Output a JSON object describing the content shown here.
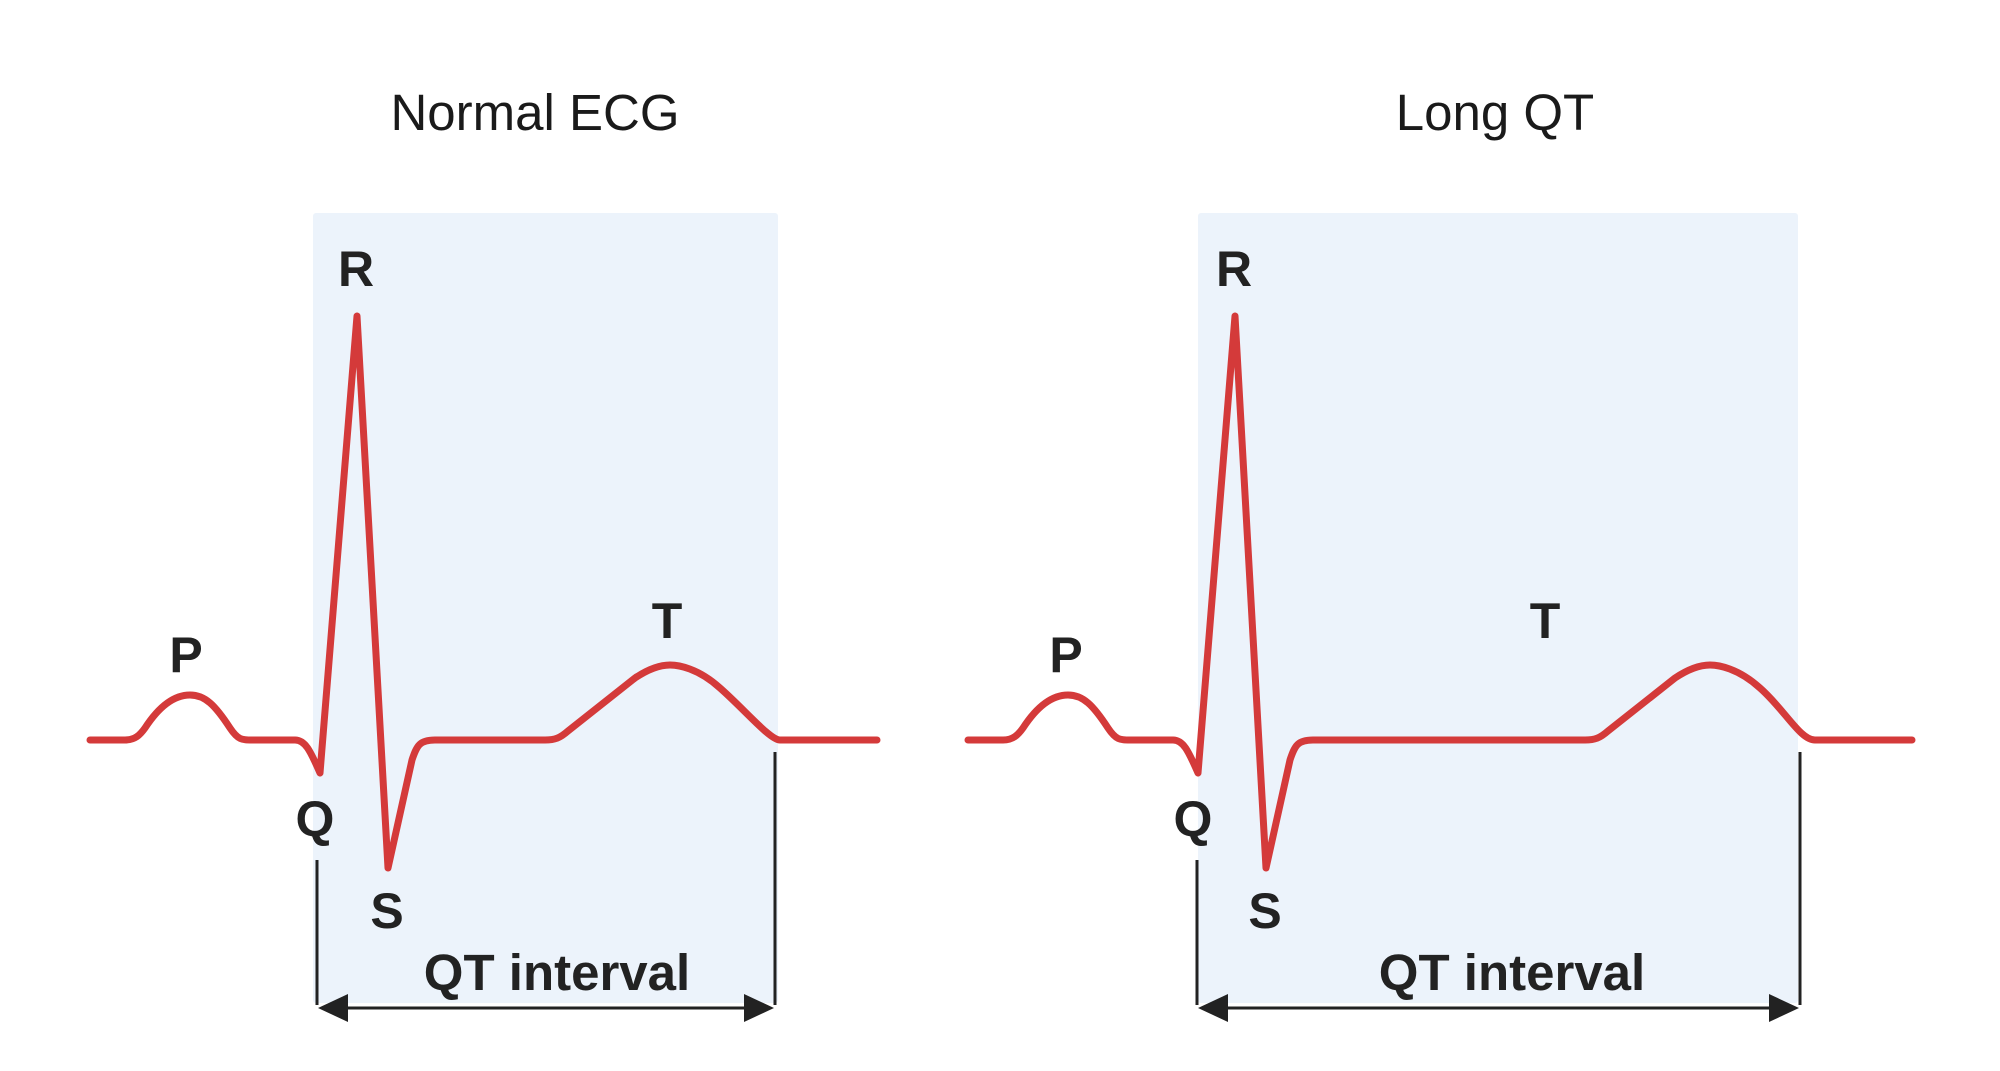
{
  "colors": {
    "trace": "#d43a3a",
    "qt_box": "#ecf3fb",
    "text": "#222222",
    "background": "#ffffff"
  },
  "panels": [
    {
      "id": "normal",
      "title": "Normal ECG",
      "labels": {
        "p": "P",
        "q": "Q",
        "r": "R",
        "s": "S",
        "t": "T"
      },
      "interval_label": "QT interval"
    },
    {
      "id": "long-qt",
      "title": "Long QT",
      "labels": {
        "p": "P",
        "q": "Q",
        "r": "R",
        "s": "S",
        "t": "T"
      },
      "interval_label": "QT interval"
    }
  ]
}
